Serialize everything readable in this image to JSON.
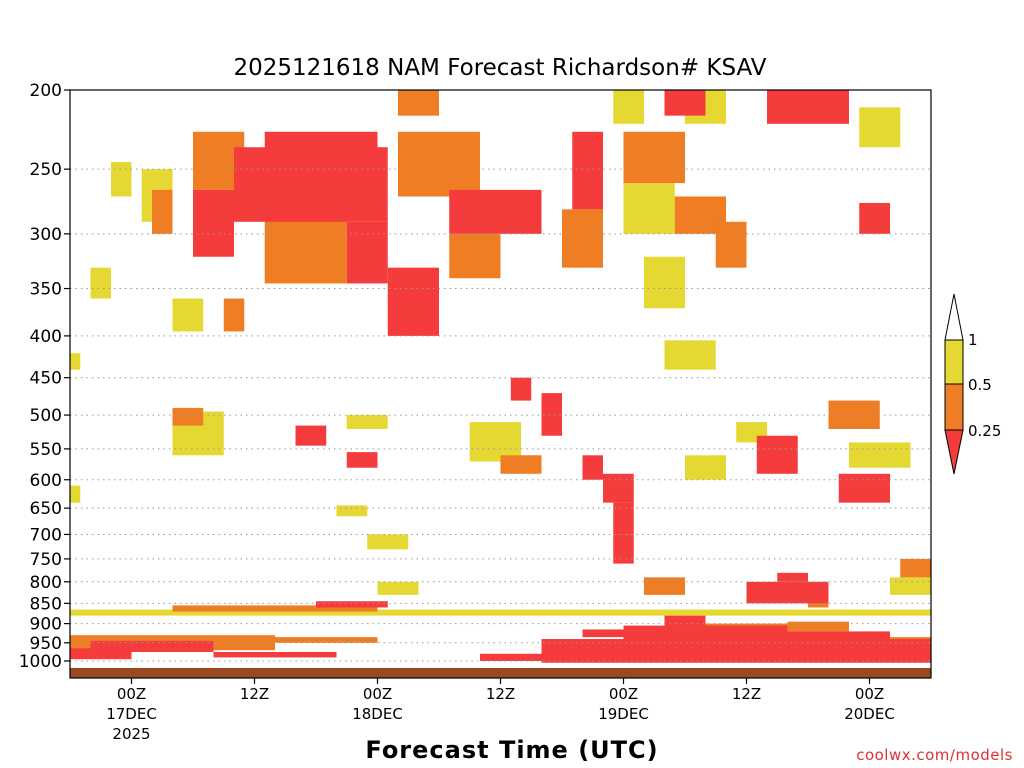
{
  "chart_data": {
    "type": "heatmap",
    "title": "2025121618 NAM Forecast Richardson# KSAV",
    "xlabel": "Forecast Time (UTC)",
    "ylabel": "",
    "y_scale": "log",
    "yticks": [
      200,
      250,
      300,
      350,
      400,
      450,
      500,
      550,
      600,
      650,
      700,
      750,
      800,
      850,
      900,
      950,
      1000
    ],
    "ylim": [
      1020,
      200
    ],
    "xticks": [
      {
        "label": "00Z",
        "date": "17DEC",
        "year": "2025",
        "hour": 6
      },
      {
        "label": "12Z",
        "hour": 18
      },
      {
        "label": "00Z",
        "date": "18DEC",
        "hour": 30
      },
      {
        "label": "12Z",
        "hour": 42
      },
      {
        "label": "00Z",
        "date": "19DEC",
        "hour": 54
      },
      {
        "label": "12Z",
        "hour": 66
      },
      {
        "label": "00Z",
        "date": "20DEC",
        "hour": 78
      }
    ],
    "xlim": [
      0,
      84
    ],
    "colorbar": {
      "ticks": [
        "1",
        "0.5",
        "0.25"
      ],
      "bins": [
        {
          "range": "< 0.25",
          "color": "#f53c3c"
        },
        {
          "range": "0.25 - 0.5",
          "color": "#ee7d23"
        },
        {
          "range": "0.5 - 1",
          "color": "#e6d832"
        },
        {
          "range": "> 1",
          "color": "#ffffff"
        }
      ]
    },
    "grid": "dotted-horizontal",
    "regions": [
      {
        "t": [
          12,
          16
        ],
        "p": [
          265,
          320
        ],
        "cat": "low"
      },
      {
        "t": [
          16,
          31
        ],
        "p": [
          235,
          290
        ],
        "cat": "low"
      },
      {
        "t": [
          19,
          30
        ],
        "p": [
          225,
          255
        ],
        "cat": "low"
      },
      {
        "t": [
          27,
          31
        ],
        "p": [
          290,
          345
        ],
        "cat": "low"
      },
      {
        "t": [
          31,
          36
        ],
        "p": [
          330,
          400
        ],
        "cat": "low"
      },
      {
        "t": [
          37,
          46
        ],
        "p": [
          265,
          300
        ],
        "cat": "low"
      },
      {
        "t": [
          49,
          52
        ],
        "p": [
          225,
          280
        ],
        "cat": "low"
      },
      {
        "t": [
          68,
          76
        ],
        "p": [
          200,
          220
        ],
        "cat": "low"
      },
      {
        "t": [
          77,
          80
        ],
        "p": [
          275,
          300
        ],
        "cat": "low"
      },
      {
        "t": [
          58,
          62
        ],
        "p": [
          200,
          215
        ],
        "cat": "low"
      },
      {
        "t": [
          67,
          71
        ],
        "p": [
          530,
          590
        ],
        "cat": "low"
      },
      {
        "t": [
          75,
          80
        ],
        "p": [
          590,
          640
        ],
        "cat": "low"
      },
      {
        "t": [
          22,
          25
        ],
        "p": [
          515,
          545
        ],
        "cat": "low"
      },
      {
        "t": [
          27,
          30
        ],
        "p": [
          555,
          580
        ],
        "cat": "low"
      },
      {
        "t": [
          12,
          17
        ],
        "p": [
          225,
          265
        ],
        "cat": "mid"
      },
      {
        "t": [
          19,
          27
        ],
        "p": [
          255,
          345
        ],
        "cat": "mid"
      },
      {
        "t": [
          32,
          40
        ],
        "p": [
          225,
          270
        ],
        "cat": "mid"
      },
      {
        "t": [
          37,
          42
        ],
        "p": [
          300,
          340
        ],
        "cat": "mid"
      },
      {
        "t": [
          48,
          52
        ],
        "p": [
          280,
          330
        ],
        "cat": "mid"
      },
      {
        "t": [
          54,
          60
        ],
        "p": [
          225,
          260
        ],
        "cat": "mid"
      },
      {
        "t": [
          59,
          64
        ],
        "p": [
          270,
          300
        ],
        "cat": "mid"
      },
      {
        "t": [
          63,
          66
        ],
        "p": [
          290,
          330
        ],
        "cat": "mid"
      },
      {
        "t": [
          74,
          79
        ],
        "p": [
          480,
          520
        ],
        "cat": "mid"
      },
      {
        "t": [
          32,
          36
        ],
        "p": [
          200,
          215
        ],
        "cat": "mid"
      },
      {
        "t": [
          10,
          13
        ],
        "p": [
          490,
          515
        ],
        "cat": "mid"
      },
      {
        "t": [
          15,
          17
        ],
        "p": [
          360,
          395
        ],
        "cat": "mid"
      },
      {
        "t": [
          8,
          10
        ],
        "p": [
          265,
          300
        ],
        "cat": "mid"
      },
      {
        "t": [
          7,
          10
        ],
        "p": [
          250,
          290
        ],
        "cat": "high"
      },
      {
        "t": [
          10,
          13
        ],
        "p": [
          360,
          395
        ],
        "cat": "high"
      },
      {
        "t": [
          10,
          15
        ],
        "p": [
          495,
          560
        ],
        "cat": "high"
      },
      {
        "t": [
          27,
          31
        ],
        "p": [
          500,
          520
        ],
        "cat": "high"
      },
      {
        "t": [
          39,
          44
        ],
        "p": [
          510,
          570
        ],
        "cat": "high"
      },
      {
        "t": [
          53,
          56
        ],
        "p": [
          200,
          220
        ],
        "cat": "high"
      },
      {
        "t": [
          54,
          59
        ],
        "p": [
          260,
          300
        ],
        "cat": "high"
      },
      {
        "t": [
          56,
          60
        ],
        "p": [
          320,
          370
        ],
        "cat": "high"
      },
      {
        "t": [
          58,
          63
        ],
        "p": [
          405,
          440
        ],
        "cat": "high"
      },
      {
        "t": [
          60,
          64
        ],
        "p": [
          200,
          220
        ],
        "cat": "high"
      },
      {
        "t": [
          77,
          81
        ],
        "p": [
          210,
          235
        ],
        "cat": "high"
      },
      {
        "t": [
          76,
          82
        ],
        "p": [
          540,
          580
        ],
        "cat": "high"
      },
      {
        "t": [
          26,
          29
        ],
        "p": [
          645,
          665
        ],
        "cat": "high"
      },
      {
        "t": [
          29,
          33
        ],
        "p": [
          700,
          730
        ],
        "cat": "high"
      },
      {
        "t": [
          0,
          1
        ],
        "p": [
          420,
          440
        ],
        "cat": "high"
      },
      {
        "t": [
          0,
          1
        ],
        "p": [
          610,
          640
        ],
        "cat": "high"
      },
      {
        "t": [
          4,
          6
        ],
        "p": [
          245,
          270
        ],
        "cat": "high"
      },
      {
        "t": [
          2,
          4
        ],
        "p": [
          330,
          360
        ],
        "cat": "high"
      },
      {
        "t": [
          30,
          34
        ],
        "p": [
          800,
          830
        ],
        "cat": "high"
      },
      {
        "t": [
          42,
          46
        ],
        "p": [
          560,
          590
        ],
        "cat": "mid"
      },
      {
        "t": [
          60,
          64
        ],
        "p": [
          560,
          600
        ],
        "cat": "high"
      },
      {
        "t": [
          65,
          68
        ],
        "p": [
          510,
          540
        ],
        "cat": "high"
      },
      {
        "t": [
          0,
          84
        ],
        "p": [
          865,
          880
        ],
        "cat": "high"
      },
      {
        "t": [
          10,
          30
        ],
        "p": [
          855,
          870
        ],
        "cat": "mid"
      },
      {
        "t": [
          24,
          31
        ],
        "p": [
          845,
          860
        ],
        "cat": "low"
      },
      {
        "t": [
          0,
          20
        ],
        "p": [
          930,
          970
        ],
        "cat": "mid"
      },
      {
        "t": [
          2,
          14
        ],
        "p": [
          945,
          975
        ],
        "cat": "low"
      },
      {
        "t": [
          0,
          6
        ],
        "p": [
          965,
          995
        ],
        "cat": "low"
      },
      {
        "t": [
          20,
          30
        ],
        "p": [
          935,
          950
        ],
        "cat": "mid"
      },
      {
        "t": [
          14,
          26
        ],
        "p": [
          975,
          990
        ],
        "cat": "low"
      },
      {
        "t": [
          40,
          48
        ],
        "p": [
          980,
          1000
        ],
        "cat": "low"
      },
      {
        "t": [
          46,
          84
        ],
        "p": [
          940,
          1005
        ],
        "cat": "low"
      },
      {
        "t": [
          54,
          70
        ],
        "p": [
          905,
          945
        ],
        "cat": "low"
      },
      {
        "t": [
          66,
          80
        ],
        "p": [
          920,
          950
        ],
        "cat": "low"
      },
      {
        "t": [
          58,
          62
        ],
        "p": [
          880,
          910
        ],
        "cat": "low"
      },
      {
        "t": [
          50,
          55
        ],
        "p": [
          915,
          935
        ],
        "cat": "low"
      },
      {
        "t": [
          70,
          76
        ],
        "p": [
          895,
          920
        ],
        "cat": "mid"
      },
      {
        "t": [
          62,
          70
        ],
        "p": [
          900,
          915
        ],
        "cat": "mid"
      },
      {
        "t": [
          80,
          84
        ],
        "p": [
          935,
          955
        ],
        "cat": "mid"
      },
      {
        "t": [
          81,
          84
        ],
        "p": [
          750,
          790
        ],
        "cat": "mid"
      },
      {
        "t": [
          80,
          84
        ],
        "p": [
          790,
          830
        ],
        "cat": "high"
      },
      {
        "t": [
          66,
          74
        ],
        "p": [
          800,
          850
        ],
        "cat": "low"
      },
      {
        "t": [
          69,
          72
        ],
        "p": [
          780,
          800
        ],
        "cat": "low"
      },
      {
        "t": [
          72,
          74
        ],
        "p": [
          830,
          860
        ],
        "cat": "mid"
      },
      {
        "t": [
          56,
          60
        ],
        "p": [
          790,
          830
        ],
        "cat": "mid"
      },
      {
        "t": [
          52,
          55
        ],
        "p": [
          590,
          640
        ],
        "cat": "low"
      },
      {
        "t": [
          53,
          55
        ],
        "p": [
          640,
          700
        ],
        "cat": "low"
      },
      {
        "t": [
          53,
          55
        ],
        "p": [
          700,
          760
        ],
        "cat": "low"
      },
      {
        "t": [
          50,
          52
        ],
        "p": [
          560,
          600
        ],
        "cat": "low"
      },
      {
        "t": [
          46,
          48
        ],
        "p": [
          470,
          530
        ],
        "cat": "low"
      },
      {
        "t": [
          43,
          45
        ],
        "p": [
          450,
          480
        ],
        "cat": "low"
      }
    ]
  },
  "colorbar_labels": [
    "1",
    "0.5",
    "0.25"
  ],
  "credit": "coolwx.com/models"
}
